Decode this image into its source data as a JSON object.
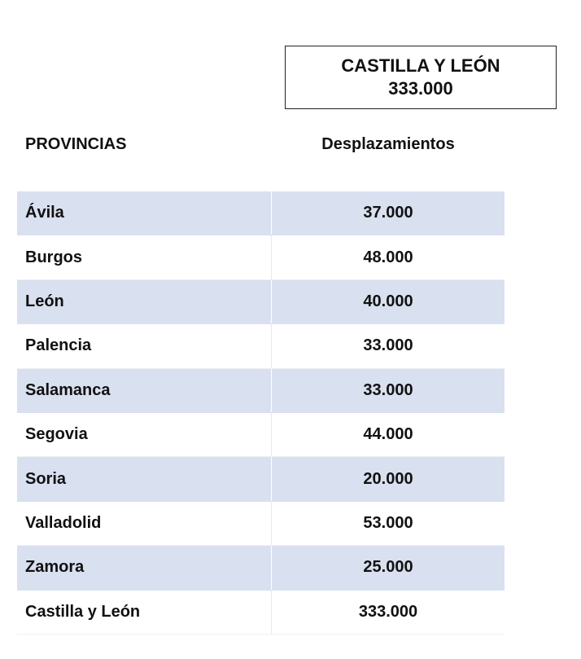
{
  "summary": {
    "title": "CASTILLA Y LEÓN",
    "value": "333.000"
  },
  "table": {
    "headers": [
      "PROVINCIAS",
      "Desplazamientos"
    ],
    "rows": [
      {
        "province": "Ávila",
        "value": "37.000"
      },
      {
        "province": "Burgos",
        "value": "48.000"
      },
      {
        "province": "León",
        "value": "40.000"
      },
      {
        "province": "Palencia",
        "value": "33.000"
      },
      {
        "province": "Salamanca",
        "value": "33.000"
      },
      {
        "province": "Segovia",
        "value": "44.000"
      },
      {
        "province": "Soria",
        "value": "20.000"
      },
      {
        "province": "Valladolid",
        "value": "53.000"
      },
      {
        "province": "Zamora",
        "value": "25.000"
      },
      {
        "province": "Castilla y León",
        "value": "333.000"
      }
    ]
  },
  "colors": {
    "row_shade": "#d9e0f0",
    "text": "#111111",
    "border": "#222222"
  }
}
